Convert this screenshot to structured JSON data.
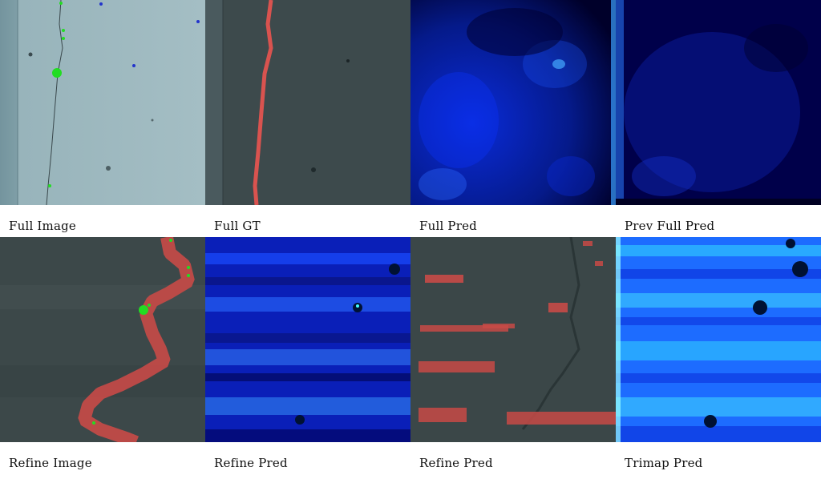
{
  "figure": {
    "rows": [
      {
        "panels": [
          {
            "caption": "Full Image",
            "kind": "crack-photo-light"
          },
          {
            "caption": "Full GT",
            "kind": "crack-photo-gt"
          },
          {
            "caption": "Full Pred",
            "kind": "heatmap-dark"
          },
          {
            "caption": "Prev Full Pred",
            "kind": "heatmap-darker"
          }
        ]
      },
      {
        "panels": [
          {
            "caption": "Refine Image",
            "kind": "refine-photo-overlay"
          },
          {
            "caption": "Refine Pred",
            "kind": "heatmap-streaks"
          },
          {
            "caption": "Refine Pred",
            "kind": "refine-photo-pred"
          },
          {
            "caption": "Trimap Pred",
            "kind": "heatmap-bright"
          }
        ]
      }
    ],
    "colors": {
      "overlay_red": "#d9534f",
      "click_positive": "#22dd22",
      "click_negative": "#2233cc",
      "heat_low": "#00002a",
      "heat_mid": "#0a2bd8",
      "heat_high": "#33ddff"
    }
  }
}
